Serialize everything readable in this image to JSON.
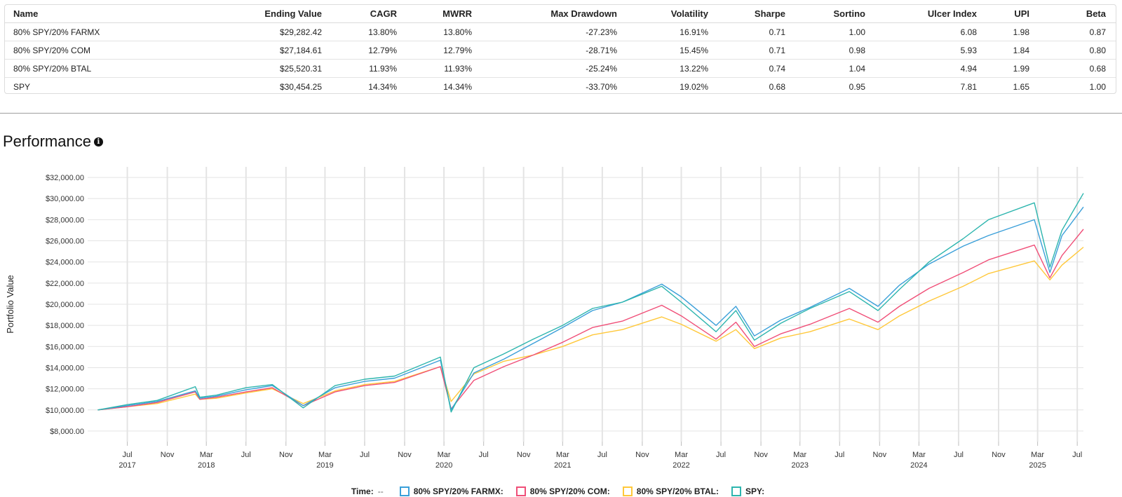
{
  "stats_table": {
    "columns": [
      "Name",
      "Ending Value",
      "CAGR",
      "MWRR",
      "Max Drawdown",
      "Volatility",
      "Sharpe",
      "Sortino",
      "Ulcer Index",
      "UPI",
      "Beta"
    ],
    "rows": [
      [
        "80% SPY/20% FARMX",
        "$29,282.42",
        "13.80%",
        "13.80%",
        "-27.23%",
        "16.91%",
        "0.71",
        "1.00",
        "6.08",
        "1.98",
        "0.87"
      ],
      [
        "80% SPY/20% COM",
        "$27,184.61",
        "12.79%",
        "12.79%",
        "-28.71%",
        "15.45%",
        "0.71",
        "0.98",
        "5.93",
        "1.84",
        "0.80"
      ],
      [
        "80% SPY/20% BTAL",
        "$25,520.31",
        "11.93%",
        "11.93%",
        "-25.24%",
        "13.22%",
        "0.74",
        "1.04",
        "4.94",
        "1.99",
        "0.68"
      ],
      [
        "SPY",
        "$30,454.25",
        "14.34%",
        "14.34%",
        "-33.70%",
        "19.02%",
        "0.68",
        "0.95",
        "7.81",
        "1.65",
        "1.00"
      ]
    ]
  },
  "performance": {
    "title": "Performance",
    "info_icon": "info-icon"
  },
  "legend": {
    "time_label": "Time:",
    "time_value": "--"
  },
  "chart_data": {
    "type": "line",
    "title": "",
    "ylabel": "Portfolio Value",
    "xlabel": "",
    "ylim": [
      7000,
      33000
    ],
    "yticks": [
      8000,
      10000,
      12000,
      14000,
      16000,
      18000,
      20000,
      22000,
      24000,
      26000,
      28000,
      30000,
      32000
    ],
    "ytick_labels": [
      "$8,000.00",
      "$10,000.00",
      "$12,000.00",
      "$14,000.00",
      "$16,000.00",
      "$18,000.00",
      "$20,000.00",
      "$22,000.00",
      "$24,000.00",
      "$26,000.00",
      "$28,000.00",
      "$30,000.00",
      "$32,000.00"
    ],
    "xlim": [
      "2017-03-01",
      "2025-07-20"
    ],
    "xticks": [
      {
        "date": "2017-07-01",
        "label": "Jul",
        "year": "2017"
      },
      {
        "date": "2017-11-01",
        "label": "Nov",
        "year": ""
      },
      {
        "date": "2018-03-01",
        "label": "Mar",
        "year": "2018"
      },
      {
        "date": "2018-07-01",
        "label": "Jul",
        "year": ""
      },
      {
        "date": "2018-11-01",
        "label": "Nov",
        "year": ""
      },
      {
        "date": "2019-03-01",
        "label": "Mar",
        "year": "2019"
      },
      {
        "date": "2019-07-01",
        "label": "Jul",
        "year": ""
      },
      {
        "date": "2019-11-01",
        "label": "Nov",
        "year": ""
      },
      {
        "date": "2020-03-01",
        "label": "Mar",
        "year": "2020"
      },
      {
        "date": "2020-07-01",
        "label": "Jul",
        "year": ""
      },
      {
        "date": "2020-11-01",
        "label": "Nov",
        "year": ""
      },
      {
        "date": "2021-03-01",
        "label": "Mar",
        "year": "2021"
      },
      {
        "date": "2021-07-01",
        "label": "Jul",
        "year": ""
      },
      {
        "date": "2021-11-01",
        "label": "Nov",
        "year": ""
      },
      {
        "date": "2022-03-01",
        "label": "Mar",
        "year": "2022"
      },
      {
        "date": "2022-07-01",
        "label": "Jul",
        "year": ""
      },
      {
        "date": "2022-11-01",
        "label": "Nov",
        "year": ""
      },
      {
        "date": "2023-03-01",
        "label": "Mar",
        "year": "2023"
      },
      {
        "date": "2023-07-01",
        "label": "Jul",
        "year": ""
      },
      {
        "date": "2023-11-01",
        "label": "Nov",
        "year": ""
      },
      {
        "date": "2024-03-01",
        "label": "Mar",
        "year": "2024"
      },
      {
        "date": "2024-07-01",
        "label": "Jul",
        "year": ""
      },
      {
        "date": "2024-11-01",
        "label": "Nov",
        "year": ""
      },
      {
        "date": "2025-03-01",
        "label": "Mar",
        "year": "2025"
      },
      {
        "date": "2025-07-01",
        "label": "Jul",
        "year": ""
      }
    ],
    "grid": true,
    "legend_position": "bottom",
    "x": [
      "2017-04-01",
      "2017-07-01",
      "2017-10-01",
      "2018-01-26",
      "2018-02-09",
      "2018-04-01",
      "2018-07-01",
      "2018-09-20",
      "2018-12-24",
      "2019-04-01",
      "2019-07-01",
      "2019-10-01",
      "2020-02-19",
      "2020-03-23",
      "2020-06-01",
      "2020-09-01",
      "2020-12-01",
      "2021-03-01",
      "2021-06-01",
      "2021-09-01",
      "2021-12-31",
      "2022-03-01",
      "2022-06-16",
      "2022-08-16",
      "2022-10-12",
      "2023-01-01",
      "2023-04-01",
      "2023-07-31",
      "2023-10-27",
      "2024-01-01",
      "2024-04-01",
      "2024-07-15",
      "2024-10-01",
      "2025-02-19",
      "2025-04-08",
      "2025-05-15",
      "2025-07-20"
    ],
    "series": [
      {
        "name": "80% SPY/20% FARMX",
        "color": "#3a9fd9",
        "values": [
          10000,
          10400,
          10800,
          11800,
          11100,
          11300,
          11900,
          12300,
          10400,
          12100,
          12700,
          13000,
          14700,
          10000,
          13500,
          14800,
          16300,
          17800,
          19400,
          20200,
          21900,
          20700,
          18000,
          19800,
          17000,
          18500,
          19700,
          21500,
          19800,
          21800,
          23800,
          25500,
          26500,
          28000,
          23000,
          26500,
          29200
        ]
      },
      {
        "name": "80% SPY/20% COM",
        "color": "#f04f78",
        "values": [
          10000,
          10300,
          10700,
          11700,
          11000,
          11200,
          11700,
          12100,
          10400,
          11700,
          12300,
          12600,
          14100,
          10100,
          12800,
          14100,
          15200,
          16400,
          17800,
          18400,
          19900,
          18900,
          16700,
          18300,
          16000,
          17200,
          18100,
          19600,
          18300,
          19800,
          21500,
          23000,
          24200,
          25600,
          22500,
          24600,
          27100
        ]
      },
      {
        "name": "80% SPY/20% BTAL",
        "color": "#ffc83a",
        "values": [
          10000,
          10300,
          10600,
          11500,
          11000,
          11100,
          11600,
          12000,
          10600,
          11800,
          12400,
          12700,
          14100,
          10800,
          13400,
          14600,
          15200,
          16000,
          17100,
          17600,
          18800,
          18100,
          16500,
          17600,
          15800,
          16800,
          17400,
          18600,
          17600,
          18900,
          20300,
          21700,
          22900,
          24100,
          22300,
          23700,
          25400
        ]
      },
      {
        "name": "SPY",
        "color": "#2db5ae",
        "values": [
          10000,
          10500,
          10900,
          12200,
          11200,
          11400,
          12100,
          12400,
          10200,
          12300,
          12900,
          13200,
          15000,
          9800,
          14000,
          15300,
          16700,
          18000,
          19600,
          20200,
          21700,
          20200,
          17400,
          19400,
          16600,
          18200,
          19600,
          21200,
          19400,
          21400,
          24000,
          26200,
          28000,
          29600,
          23500,
          27000,
          30500
        ]
      }
    ]
  }
}
